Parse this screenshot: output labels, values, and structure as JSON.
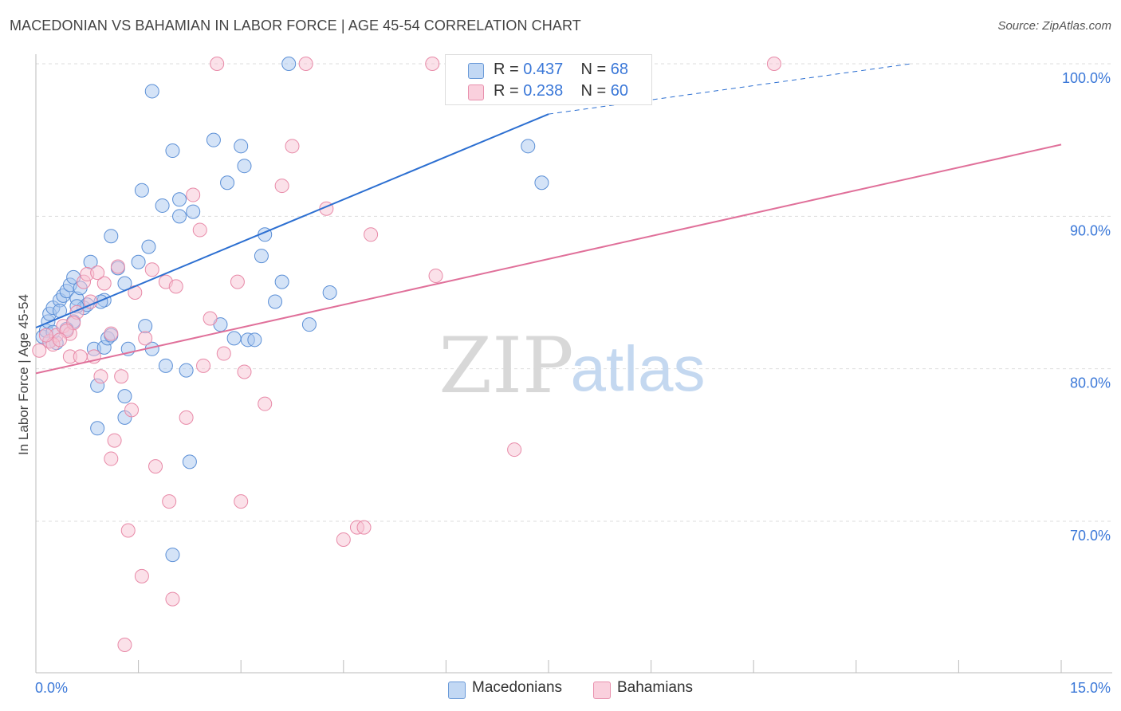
{
  "title": "MACEDONIAN VS BAHAMIAN IN LABOR FORCE | AGE 45-54 CORRELATION CHART",
  "source": "Source: ZipAtlas.com",
  "watermark": {
    "zip": "ZIP",
    "atlas": "atlas"
  },
  "legend": {
    "r_label": "R =",
    "n_label": "N =",
    "rows": [
      {
        "r": "0.437",
        "n": "68"
      },
      {
        "r": "0.238",
        "n": "60"
      }
    ]
  },
  "colors": {
    "blue_fill": "#aac8f0",
    "blue_stroke": "#5b8fd6",
    "blue_line": "#2c6fd1",
    "pink_fill": "#f8c4d4",
    "pink_stroke": "#e88aa8",
    "pink_line": "#e0709a",
    "tick_label": "#3b78d8",
    "grid": "#dddddd"
  },
  "chart_data": {
    "type": "scatter",
    "title": "MACEDONIAN VS BAHAMIAN IN LABOR FORCE | AGE 45-54 CORRELATION CHART",
    "xlabel": "",
    "ylabel": "In Labor Force | Age 45-54",
    "xlim": [
      0,
      15
    ],
    "ylim": [
      60,
      100
    ],
    "x_tick_labels": [
      "0.0%",
      "15.0%"
    ],
    "y_ticks": [
      70,
      80,
      90,
      100
    ],
    "y_tick_labels": [
      "70.0%",
      "80.0%",
      "90.0%",
      "100.0%"
    ],
    "grid": true,
    "legend_position": "top-center",
    "series": [
      {
        "name": "Macedonians",
        "color": "#aac8f0",
        "trend": {
          "x0": 0,
          "y0": 82.7,
          "x1": 7.5,
          "y1": 96.7,
          "dashed_to_x": 12.8,
          "dashed_to_y": 100
        },
        "points": [
          [
            0.1,
            82.1
          ],
          [
            0.15,
            82.5
          ],
          [
            0.18,
            83.1
          ],
          [
            0.2,
            83.6
          ],
          [
            0.25,
            84.0
          ],
          [
            0.3,
            81.7
          ],
          [
            0.35,
            84.5
          ],
          [
            0.4,
            84.8
          ],
          [
            0.45,
            85.1
          ],
          [
            0.5,
            85.5
          ],
          [
            0.55,
            86.0
          ],
          [
            0.6,
            84.6
          ],
          [
            0.65,
            85.3
          ],
          [
            0.7,
            84.0
          ],
          [
            0.75,
            84.2
          ],
          [
            0.8,
            87.0
          ],
          [
            0.85,
            81.3
          ],
          [
            0.9,
            78.9
          ],
          [
            0.9,
            76.1
          ],
          [
            1.0,
            84.5
          ],
          [
            1.0,
            81.4
          ],
          [
            1.05,
            82.0
          ],
          [
            1.1,
            88.7
          ],
          [
            1.2,
            86.6
          ],
          [
            1.3,
            85.6
          ],
          [
            1.35,
            81.3
          ],
          [
            1.3,
            78.2
          ],
          [
            1.3,
            76.8
          ],
          [
            1.5,
            87.0
          ],
          [
            1.55,
            91.7
          ],
          [
            1.6,
            82.8
          ],
          [
            1.65,
            88.0
          ],
          [
            1.7,
            81.3
          ],
          [
            1.7,
            98.2
          ],
          [
            1.85,
            90.7
          ],
          [
            1.9,
            80.2
          ],
          [
            2.0,
            94.3
          ],
          [
            2.1,
            91.1
          ],
          [
            2.1,
            90.0
          ],
          [
            2.2,
            79.9
          ],
          [
            2.25,
            73.9
          ],
          [
            2.3,
            90.3
          ],
          [
            2.6,
            95.0
          ],
          [
            2.7,
            82.9
          ],
          [
            2.8,
            92.2
          ],
          [
            2.9,
            82.0
          ],
          [
            3.0,
            94.6
          ],
          [
            3.05,
            93.3
          ],
          [
            3.1,
            81.9
          ],
          [
            3.2,
            81.9
          ],
          [
            3.3,
            87.4
          ],
          [
            3.35,
            88.8
          ],
          [
            3.5,
            84.4
          ],
          [
            3.6,
            85.7
          ],
          [
            3.7,
            100.0
          ],
          [
            4.0,
            82.9
          ],
          [
            4.3,
            85.0
          ],
          [
            7.2,
            94.6
          ],
          [
            7.4,
            92.2
          ],
          [
            2.0,
            67.8
          ],
          [
            1.1,
            82.2
          ],
          [
            0.55,
            83.1
          ],
          [
            0.45,
            82.6
          ],
          [
            0.25,
            82.4
          ],
          [
            0.2,
            81.8
          ],
          [
            0.35,
            83.8
          ],
          [
            0.6,
            84.1
          ],
          [
            0.95,
            84.4
          ]
        ]
      },
      {
        "name": "Bahamians",
        "color": "#f8c4d4",
        "trend": {
          "x0": 0,
          "y0": 79.7,
          "x1": 15,
          "y1": 94.7
        },
        "points": [
          [
            0.05,
            81.2
          ],
          [
            0.2,
            81.8
          ],
          [
            0.3,
            82.2
          ],
          [
            0.4,
            82.8
          ],
          [
            0.5,
            82.3
          ],
          [
            0.5,
            80.8
          ],
          [
            0.6,
            83.7
          ],
          [
            0.65,
            80.8
          ],
          [
            0.7,
            85.7
          ],
          [
            0.75,
            86.2
          ],
          [
            0.8,
            84.4
          ],
          [
            0.85,
            80.8
          ],
          [
            0.95,
            79.5
          ],
          [
            1.0,
            85.6
          ],
          [
            1.1,
            82.3
          ],
          [
            1.1,
            74.1
          ],
          [
            1.15,
            75.3
          ],
          [
            1.2,
            86.7
          ],
          [
            1.25,
            79.5
          ],
          [
            1.3,
            61.9
          ],
          [
            1.35,
            69.4
          ],
          [
            1.4,
            77.3
          ],
          [
            1.45,
            85.0
          ],
          [
            1.55,
            66.4
          ],
          [
            1.6,
            82.0
          ],
          [
            1.7,
            86.5
          ],
          [
            1.75,
            73.6
          ],
          [
            1.9,
            85.7
          ],
          [
            1.95,
            71.3
          ],
          [
            2.0,
            64.9
          ],
          [
            2.05,
            85.4
          ],
          [
            2.2,
            76.8
          ],
          [
            2.3,
            91.4
          ],
          [
            2.4,
            89.1
          ],
          [
            2.45,
            80.2
          ],
          [
            2.55,
            83.3
          ],
          [
            2.65,
            100.0
          ],
          [
            2.75,
            81.0
          ],
          [
            2.95,
            85.7
          ],
          [
            3.0,
            71.3
          ],
          [
            3.05,
            79.8
          ],
          [
            3.35,
            77.7
          ],
          [
            3.6,
            92.0
          ],
          [
            3.75,
            94.6
          ],
          [
            3.95,
            100.0
          ],
          [
            4.25,
            90.5
          ],
          [
            4.5,
            68.8
          ],
          [
            4.7,
            69.6
          ],
          [
            4.8,
            69.6
          ],
          [
            4.9,
            88.8
          ],
          [
            5.8,
            100.0
          ],
          [
            5.85,
            86.1
          ],
          [
            7.0,
            74.7
          ],
          [
            10.8,
            100.0
          ],
          [
            0.25,
            81.6
          ],
          [
            0.55,
            83.0
          ],
          [
            0.45,
            82.5
          ],
          [
            0.35,
            81.9
          ],
          [
            0.15,
            82.2
          ],
          [
            0.9,
            86.3
          ]
        ]
      }
    ]
  }
}
